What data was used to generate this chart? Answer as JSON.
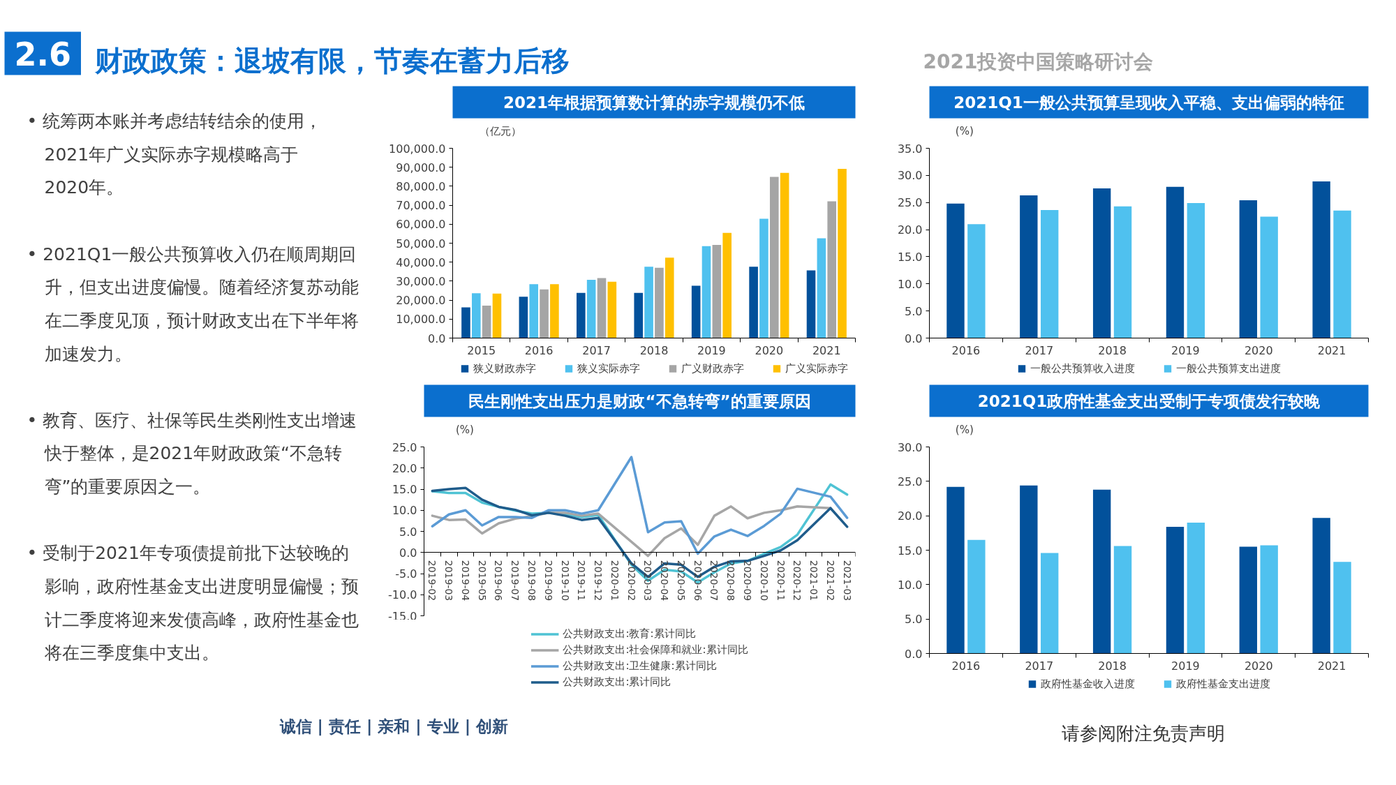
{
  "chart_data": [
    {
      "type": "other",
      "title": "财政政策：退坡有限，节奏在蓄力后移",
      "subtitle": "2021投资中国策略研讨会",
      "annotations": [
        "2.6",
        "• 统筹两本账并考虑结转结余的使用，2021年广义实际赤字规模略高于2020年。",
        "• 2021Q1一般公共预算收入仍在顺周期回升，但支出进度偏慢。随着经济复苏动能在二季度见顶，预计财政支出在下半年将加速发力。",
        "• 教育、医疗、社保等民生类刚性支出增速快于整体，是2021年财政政策“不急转弯”的重要原因之一。",
        "• 受制于2021年专项债提前批下达较晚的影响，政府性基金支出进度明显偏慢；预计二季度将迎来发债高峰，政府性基金也将在三季度集中支出。",
        "诚信 | 责任 | 亲和 | 专业 | 创新",
        "请参阅附注免责声明"
      ]
    },
    {
      "type": "bar",
      "title": "2021年根据预算数计算的赤字规模仍不低",
      "ylabel": "（亿元）",
      "categories": [
        "2015",
        "2016",
        "2017",
        "2018",
        "2019",
        "2020",
        "2021"
      ],
      "series": [
        {
          "name": "狭义财政赤字",
          "color": "#02519b",
          "values": [
            16200,
            21800,
            23800,
            23800,
            27600,
            37600,
            35700
          ]
        },
        {
          "name": "狭义实际赤字",
          "color": "#4fc1ef",
          "values": [
            23600,
            28400,
            30700,
            37600,
            48400,
            62900,
            52600
          ]
        },
        {
          "name": "广义财政赤字",
          "color": "#a5a5a5",
          "values": [
            17100,
            25600,
            31600,
            37000,
            49100,
            84900,
            72100
          ]
        },
        {
          "name": "广义实际赤字",
          "color": "#ffc000",
          "values": [
            23400,
            28400,
            29700,
            42400,
            55400,
            87000,
            89200
          ]
        }
      ],
      "ylim": [
        0,
        100000
      ],
      "yticks": [
        {
          "value": 0,
          "label": "0.0"
        },
        {
          "value": 10000,
          "label": "10,000.0"
        },
        {
          "value": 20000,
          "label": "20,000.0"
        },
        {
          "value": 30000,
          "label": "30,000.0"
        },
        {
          "value": 40000,
          "label": "40,000.0"
        },
        {
          "value": 50000,
          "label": "50,000.0"
        },
        {
          "value": 60000,
          "label": "60,000.0"
        },
        {
          "value": 70000,
          "label": "70,000.0"
        },
        {
          "value": 80000,
          "label": "80,000.0"
        },
        {
          "value": 90000,
          "label": "90,000.0"
        },
        {
          "value": 100000,
          "label": "100,000.0"
        }
      ],
      "legend": "bottom",
      "grid": false
    },
    {
      "type": "bar",
      "title": "2021Q1一般公共预算呈现收入平稳、支出偏弱的特征",
      "ylabel": "(%)",
      "categories": [
        "2016",
        "2017",
        "2018",
        "2019",
        "2020",
        "2021"
      ],
      "series": [
        {
          "name": "一般公共预算收入进度",
          "color": "#02519b",
          "values": [
            24.8,
            26.3,
            27.6,
            27.9,
            25.4,
            28.9
          ]
        },
        {
          "name": "一般公共预算支出进度",
          "color": "#4fc1ef",
          "values": [
            21.0,
            23.6,
            24.3,
            24.9,
            22.4,
            23.5
          ]
        }
      ],
      "ylim": [
        0,
        35
      ],
      "yticks": [
        {
          "value": 0,
          "label": "0.0"
        },
        {
          "value": 5,
          "label": "5.0"
        },
        {
          "value": 10,
          "label": "10.0"
        },
        {
          "value": 15,
          "label": "15.0"
        },
        {
          "value": 20,
          "label": "20.0"
        },
        {
          "value": 25,
          "label": "25.0"
        },
        {
          "value": 30,
          "label": "30.0"
        },
        {
          "value": 35,
          "label": "35.0"
        }
      ],
      "legend": "bottom",
      "grid": false
    },
    {
      "type": "line",
      "title": "民生刚性支出压力是财政“不急转弯”的重要原因",
      "ylabel": "(%)",
      "categories": [
        "2019-02",
        "2019-03",
        "2019-04",
        "2019-05",
        "2019-06",
        "2019-07",
        "2019-08",
        "2019-09",
        "2019-10",
        "2019-11",
        "2019-12",
        "2020-01",
        "2020-02",
        "2020-03",
        "2020-04",
        "2020-05",
        "2020-06",
        "2020-07",
        "2020-08",
        "2020-09",
        "2020-10",
        "2020-11",
        "2020-12",
        "2021-01",
        "2021-02",
        "2021-03"
      ],
      "series": [
        {
          "name": "公共财政支出:教育:累计同比",
          "color": "#4fc3d4",
          "values": [
            14.5,
            14.1,
            14.1,
            11.8,
            10.8,
            9.9,
            9.2,
            9.4,
            9.1,
            8.4,
            8.9,
            null,
            -2.9,
            -6.7,
            -4.1,
            -4.5,
            -7.1,
            -4.7,
            -2.6,
            -2.0,
            -0.3,
            1.3,
            4.2,
            null,
            16.1,
            13.7
          ]
        },
        {
          "name": "公共财政支出:社会保障和就业:累计同比",
          "color": "#a6a6a6",
          "values": [
            8.7,
            7.7,
            7.8,
            4.5,
            6.9,
            8.0,
            8.6,
            9.4,
            9.4,
            8.7,
            9.2,
            null,
            null,
            -0.8,
            3.4,
            5.7,
            1.8,
            8.7,
            10.9,
            8.1,
            9.4,
            10.0,
            10.9,
            null,
            10.5,
            null
          ]
        },
        {
          "name": "公共财政支出:卫生健康:累计同比",
          "color": "#5b9bd5",
          "values": [
            6.2,
            9.0,
            10.0,
            6.4,
            8.4,
            8.4,
            8.2,
            10.0,
            10.0,
            9.2,
            10.0,
            null,
            22.6,
            4.8,
            7.1,
            7.4,
            -0.3,
            3.8,
            5.4,
            3.9,
            6.3,
            9.2,
            15.1,
            null,
            13.2,
            8.2
          ]
        },
        {
          "name": "公共财政支出:累计同比",
          "color": "#1f5c8b",
          "values": [
            14.6,
            15.0,
            15.3,
            12.5,
            10.8,
            10.1,
            8.8,
            9.4,
            8.7,
            7.7,
            8.2,
            null,
            -2.6,
            -5.8,
            -2.6,
            -2.9,
            -5.8,
            -3.4,
            -2.1,
            -2.0,
            -0.8,
            0.5,
            2.9,
            null,
            10.5,
            6.1
          ]
        }
      ],
      "ylim": [
        -15,
        25
      ],
      "yticks": [
        {
          "value": -15,
          "label": "-15.0"
        },
        {
          "value": -10,
          "label": "-10.0"
        },
        {
          "value": -5,
          "label": "-5.0"
        },
        {
          "value": 0,
          "label": "0.0"
        },
        {
          "value": 5,
          "label": "5.0"
        },
        {
          "value": 10,
          "label": "10.0"
        },
        {
          "value": 15,
          "label": "15.0"
        },
        {
          "value": 20,
          "label": "20.0"
        },
        {
          "value": 25,
          "label": "25.0"
        }
      ],
      "legend": "bottom",
      "grid": false
    },
    {
      "type": "bar",
      "title": "2021Q1政府性基金支出受制于专项债发行较晚",
      "ylabel": "(%)",
      "categories": [
        "2016",
        "2017",
        "2018",
        "2019",
        "2020",
        "2021"
      ],
      "series": [
        {
          "name": "政府性基金收入进度",
          "color": "#02519b",
          "values": [
            24.2,
            24.4,
            23.8,
            18.4,
            15.5,
            19.7
          ]
        },
        {
          "name": "政府性基金支出进度",
          "color": "#4fc1ef",
          "values": [
            16.5,
            14.6,
            15.6,
            19.0,
            15.7,
            13.3
          ]
        }
      ],
      "ylim": [
        0,
        30
      ],
      "yticks": [
        {
          "value": 0,
          "label": "0.0"
        },
        {
          "value": 5,
          "label": "5.0"
        },
        {
          "value": 10,
          "label": "10.0"
        },
        {
          "value": 15,
          "label": "15.0"
        },
        {
          "value": 20,
          "label": "20.0"
        },
        {
          "value": 25,
          "label": "25.0"
        },
        {
          "value": 30,
          "label": "30.0"
        }
      ],
      "legend": "bottom",
      "grid": false
    }
  ]
}
